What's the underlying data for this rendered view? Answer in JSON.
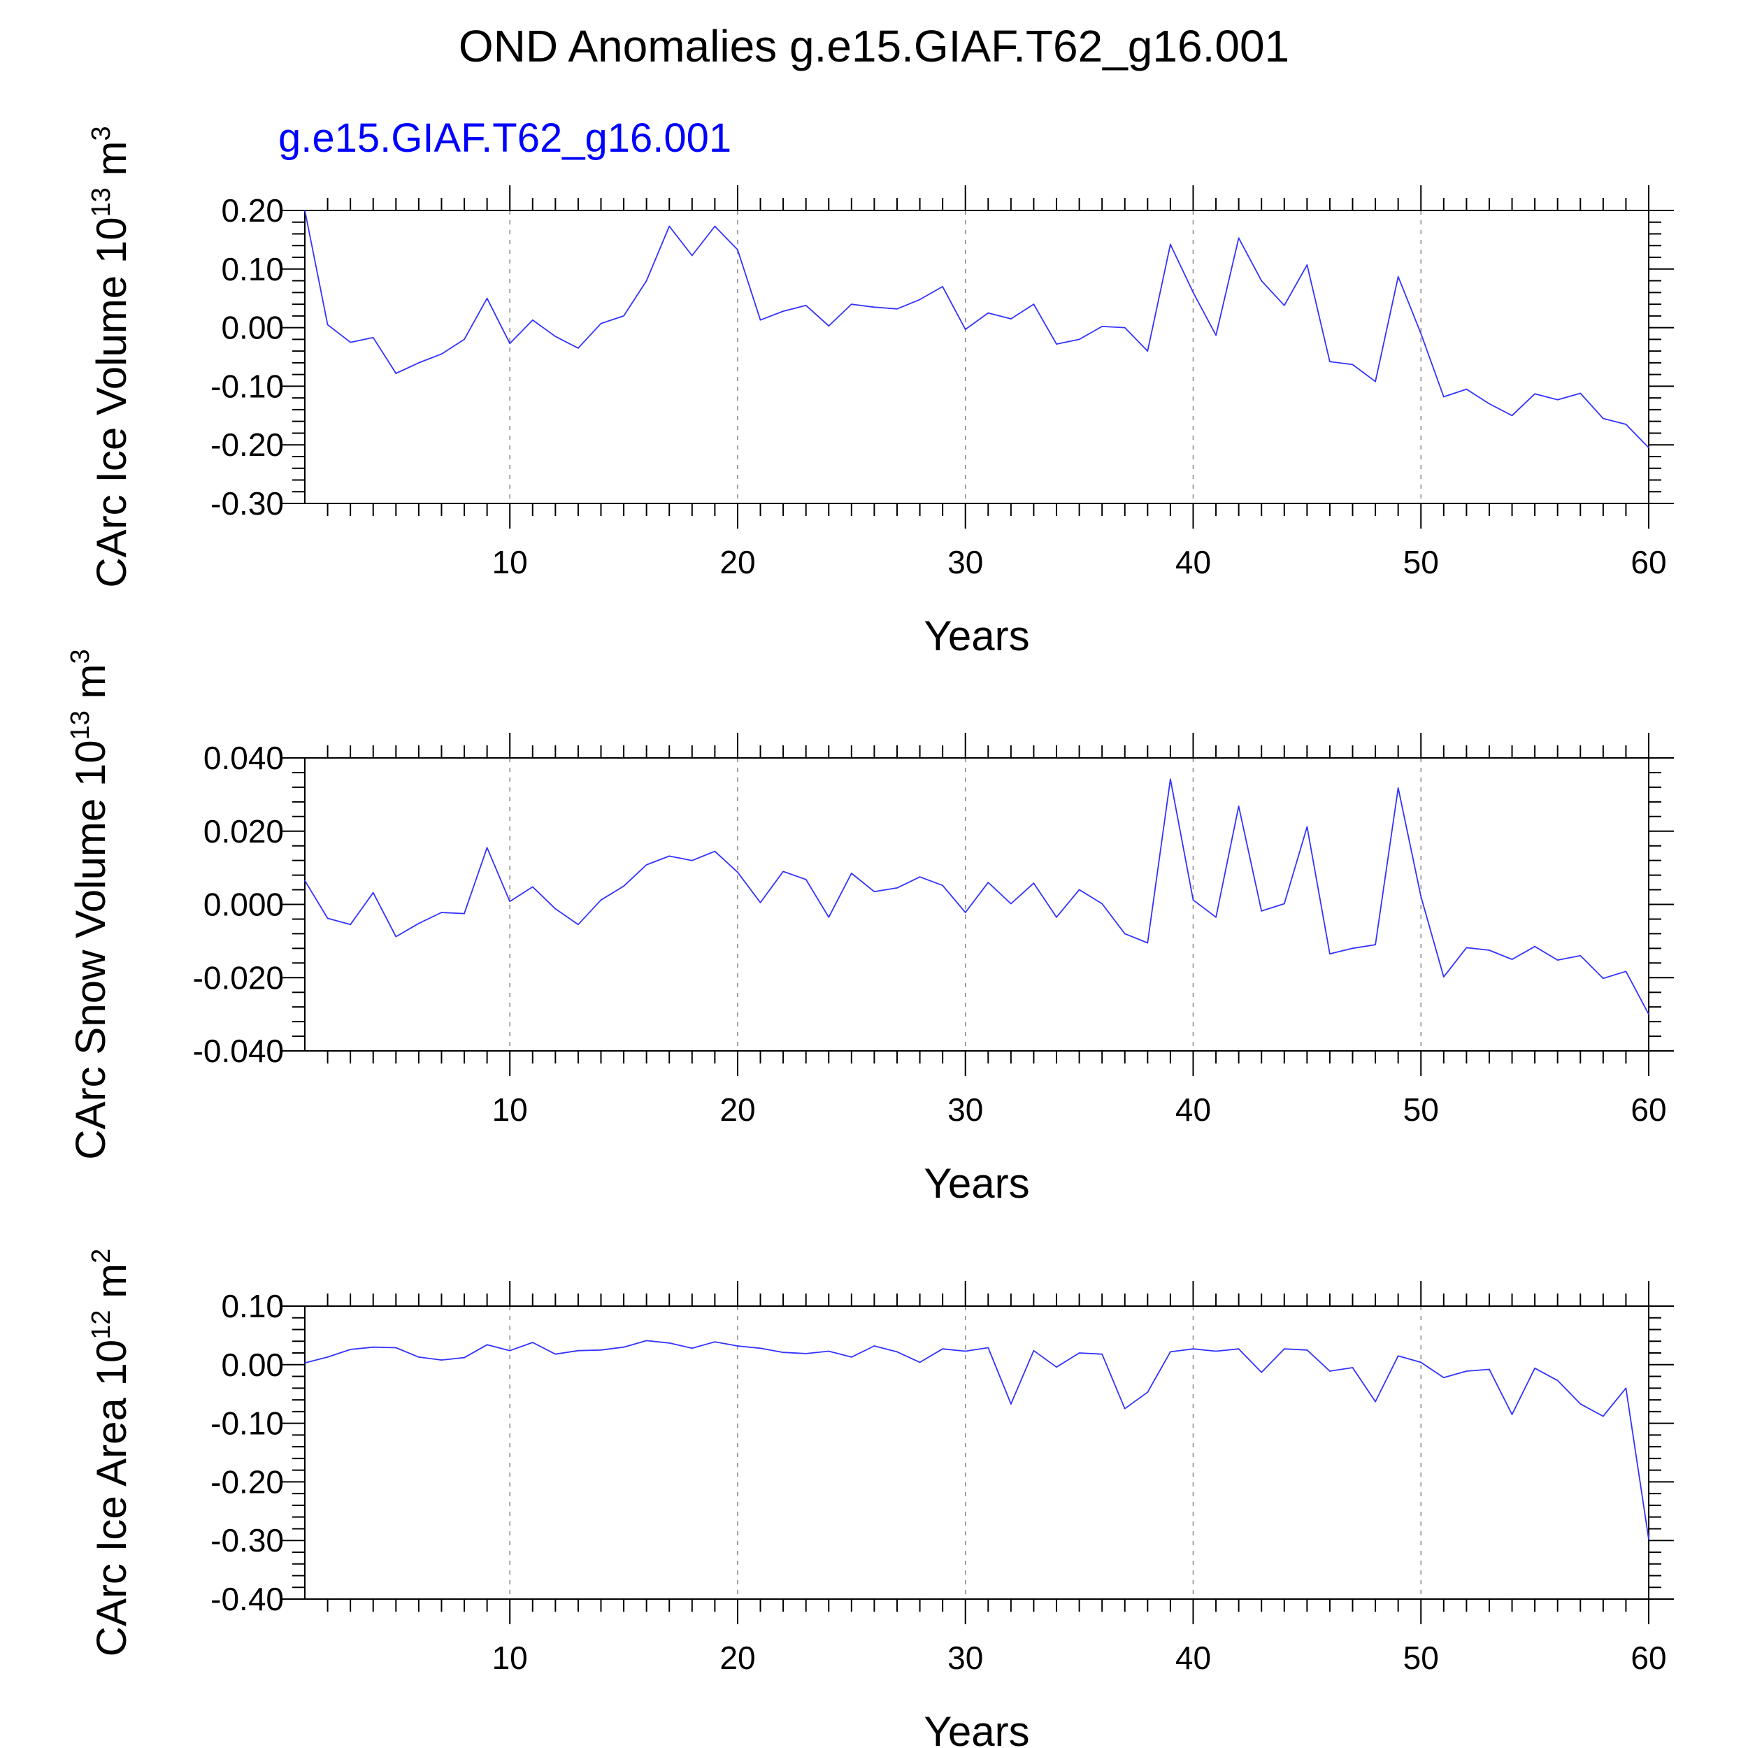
{
  "page_title": "OND Anomalies g.e15.GIAF.T62_g16.001",
  "subtitle": "g.e15.GIAF.T62_g16.001",
  "colors": {
    "line": "#3333ff",
    "subtitle": "#0000ff",
    "axis": "#000000",
    "grid": "#888888"
  },
  "chart_data": [
    {
      "type": "line",
      "ylabel": {
        "main": "CArc Ice Volume 10",
        "exp": "13",
        "unit": " m",
        "unit_exp": "3"
      },
      "xlabel": "Years",
      "xlim": [
        1,
        60
      ],
      "ylim": [
        -0.3,
        0.2
      ],
      "xticks": [
        10,
        20,
        30,
        40,
        50,
        60
      ],
      "xtick_labels": [
        "10",
        "20",
        "30",
        "40",
        "50",
        "60"
      ],
      "yticks": [
        -0.3,
        -0.2,
        -0.1,
        0.0,
        0.1,
        0.2
      ],
      "ytick_labels": [
        "-0.30",
        "-0.20",
        "-0.10",
        "0.00",
        "0.10",
        "0.20"
      ],
      "grid": "dashed vertical at major x ticks",
      "series": [
        {
          "x": [
            1,
            2,
            3,
            4,
            5,
            6,
            7,
            8,
            9,
            10,
            11,
            12,
            13,
            14,
            15,
            16,
            17,
            18,
            19,
            20,
            21,
            22,
            23,
            24,
            25,
            26,
            27,
            28,
            29,
            30,
            31,
            32,
            33,
            34,
            35,
            36,
            37,
            38,
            39,
            40,
            41,
            42,
            43,
            44,
            45,
            46,
            47,
            48,
            49,
            50,
            51,
            52,
            53,
            54,
            55,
            56,
            57,
            58,
            59,
            60
          ],
          "y": [
            0.2,
            0.005,
            -0.025,
            -0.017,
            -0.078,
            -0.06,
            -0.045,
            -0.02,
            0.05,
            -0.027,
            0.013,
            -0.015,
            -0.035,
            0.007,
            0.02,
            0.08,
            0.173,
            0.123,
            0.173,
            0.133,
            0.013,
            0.028,
            0.038,
            0.003,
            0.04,
            0.035,
            0.032,
            0.048,
            0.07,
            -0.003,
            0.025,
            0.015,
            0.04,
            -0.028,
            -0.02,
            0.002,
            0.0,
            -0.04,
            0.142,
            0.06,
            -0.013,
            0.153,
            0.08,
            0.038,
            0.107,
            -0.058,
            -0.063,
            -0.092,
            0.087,
            -0.01,
            -0.118,
            -0.105,
            -0.13,
            -0.15,
            -0.113,
            -0.123,
            -0.112,
            -0.155,
            -0.165,
            -0.205
          ]
        }
      ]
    },
    {
      "type": "line",
      "ylabel": {
        "main": "CArc Snow Volume 10",
        "exp": "13",
        "unit": " m",
        "unit_exp": "3"
      },
      "xlabel": "Years",
      "xlim": [
        1,
        60
      ],
      "ylim": [
        -0.04,
        0.04
      ],
      "xticks": [
        10,
        20,
        30,
        40,
        50,
        60
      ],
      "xtick_labels": [
        "10",
        "20",
        "30",
        "40",
        "50",
        "60"
      ],
      "yticks": [
        -0.04,
        -0.02,
        0.0,
        0.02,
        0.04
      ],
      "ytick_labels": [
        "-0.040",
        "-0.020",
        "0.000",
        "0.020",
        "0.040"
      ],
      "grid": "dashed vertical at major x ticks",
      "series": [
        {
          "x": [
            1,
            2,
            3,
            4,
            5,
            6,
            7,
            8,
            9,
            10,
            11,
            12,
            13,
            14,
            15,
            16,
            17,
            18,
            19,
            20,
            21,
            22,
            23,
            24,
            25,
            26,
            27,
            28,
            29,
            30,
            31,
            32,
            33,
            34,
            35,
            36,
            37,
            38,
            39,
            40,
            41,
            42,
            43,
            44,
            45,
            46,
            47,
            48,
            49,
            50,
            51,
            52,
            53,
            54,
            55,
            56,
            57,
            58,
            59,
            60
          ],
          "y": [
            0.0065,
            -0.0038,
            -0.0055,
            0.0032,
            -0.0088,
            -0.0052,
            -0.0022,
            -0.0025,
            0.0155,
            0.0008,
            0.0048,
            -0.0012,
            -0.0055,
            0.0012,
            0.005,
            0.0108,
            0.0132,
            0.012,
            0.0145,
            0.0088,
            0.0005,
            0.009,
            0.0068,
            -0.0035,
            0.0085,
            0.0035,
            0.0045,
            0.0075,
            0.0052,
            -0.0022,
            0.006,
            0.0002,
            0.0058,
            -0.0035,
            0.004,
            0.0002,
            -0.008,
            -0.0105,
            0.0342,
            0.0012,
            -0.0035,
            0.0268,
            -0.0018,
            0.0002,
            0.0212,
            -0.0135,
            -0.012,
            -0.011,
            0.0318,
            0.0022,
            -0.0198,
            -0.0118,
            -0.0125,
            -0.015,
            -0.0115,
            -0.0152,
            -0.014,
            -0.0202,
            -0.0183,
            -0.03
          ]
        }
      ]
    },
    {
      "type": "line",
      "ylabel": {
        "main": "CArc Ice Area 10",
        "exp": "12",
        "unit": " m",
        "unit_exp": "2"
      },
      "xlabel": "Years",
      "xlim": [
        1,
        60
      ],
      "ylim": [
        -0.4,
        0.1
      ],
      "xticks": [
        10,
        20,
        30,
        40,
        50,
        60
      ],
      "xtick_labels": [
        "10",
        "20",
        "30",
        "40",
        "50",
        "60"
      ],
      "yticks": [
        -0.4,
        -0.3,
        -0.2,
        -0.1,
        0.0,
        0.1
      ],
      "ytick_labels": [
        "-0.40",
        "-0.30",
        "-0.20",
        "-0.10",
        "0.00",
        "0.10"
      ],
      "grid": "dashed vertical at major x ticks",
      "series": [
        {
          "x": [
            1,
            2,
            3,
            4,
            5,
            6,
            7,
            8,
            9,
            10,
            11,
            12,
            13,
            14,
            15,
            16,
            17,
            18,
            19,
            20,
            21,
            22,
            23,
            24,
            25,
            26,
            27,
            28,
            29,
            30,
            31,
            32,
            33,
            34,
            35,
            36,
            37,
            38,
            39,
            40,
            41,
            42,
            43,
            44,
            45,
            46,
            47,
            48,
            49,
            50,
            51,
            52,
            53,
            54,
            55,
            56,
            57,
            58,
            59,
            60
          ],
          "y": [
            0.003,
            0.013,
            0.026,
            0.03,
            0.029,
            0.013,
            0.008,
            0.012,
            0.034,
            0.024,
            0.038,
            0.018,
            0.024,
            0.025,
            0.03,
            0.041,
            0.037,
            0.028,
            0.039,
            0.032,
            0.028,
            0.021,
            0.019,
            0.023,
            0.013,
            0.032,
            0.022,
            0.004,
            0.027,
            0.023,
            0.029,
            -0.067,
            0.024,
            -0.004,
            0.02,
            0.018,
            -0.075,
            -0.047,
            0.022,
            0.027,
            0.023,
            0.027,
            -0.013,
            0.027,
            0.025,
            -0.011,
            -0.005,
            -0.063,
            0.015,
            0.004,
            -0.022,
            -0.011,
            -0.008,
            -0.085,
            -0.006,
            -0.027,
            -0.067,
            -0.088,
            -0.04,
            -0.298
          ]
        }
      ]
    }
  ]
}
